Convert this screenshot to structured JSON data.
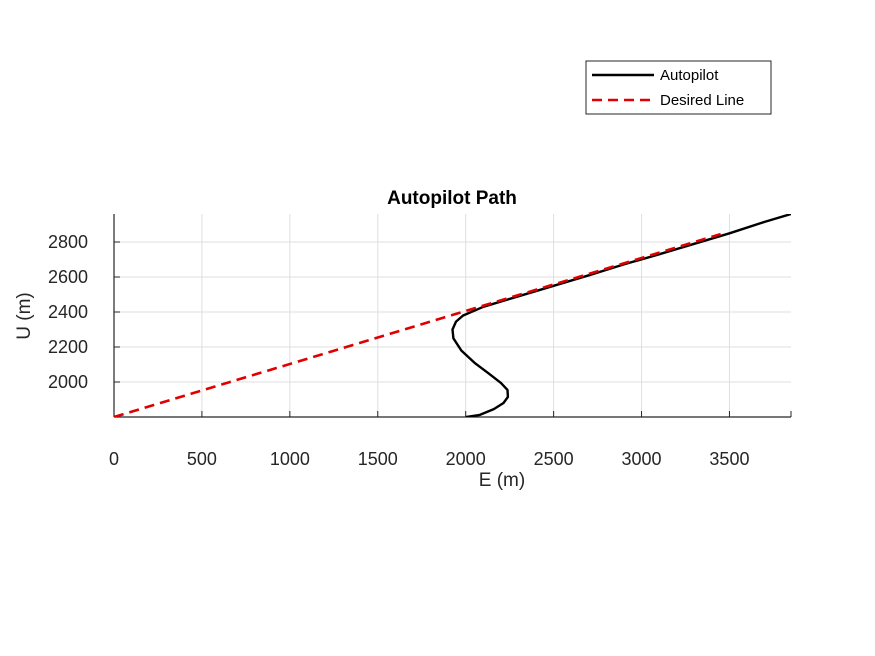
{
  "chart_data": {
    "type": "line",
    "title": "Autopilot Path",
    "xlabel": "E (m)",
    "ylabel": "U (m)",
    "xlim": [
      0,
      3850
    ],
    "ylim": [
      1800,
      2960
    ],
    "xticks": [
      0,
      500,
      1000,
      1500,
      2000,
      2500,
      3000,
      3500
    ],
    "yticks": [
      2000,
      2200,
      2400,
      2600,
      2800
    ],
    "grid": true,
    "legend_position": "top-right, outside the axes",
    "series": [
      {
        "name": "Autopilot",
        "color": "#000000",
        "style": "solid",
        "x": [
          2000,
          2080,
          2160,
          2215,
          2240,
          2238,
          2200,
          2130,
          2050,
          1975,
          1930,
          1925,
          1945,
          1985,
          2100,
          2300,
          2500,
          2700,
          2900,
          3100,
          3300,
          3500,
          3700,
          3850
        ],
        "y": [
          1800,
          1812,
          1845,
          1880,
          1915,
          1955,
          1995,
          2050,
          2110,
          2180,
          2250,
          2300,
          2345,
          2380,
          2430,
          2490,
          2550,
          2610,
          2672,
          2730,
          2790,
          2850,
          2915,
          2960
        ]
      },
      {
        "name": "Desired Line",
        "color": "#e00000",
        "style": "dashed",
        "x": [
          0,
          3450
        ],
        "y": [
          1800,
          2845
        ]
      }
    ]
  }
}
